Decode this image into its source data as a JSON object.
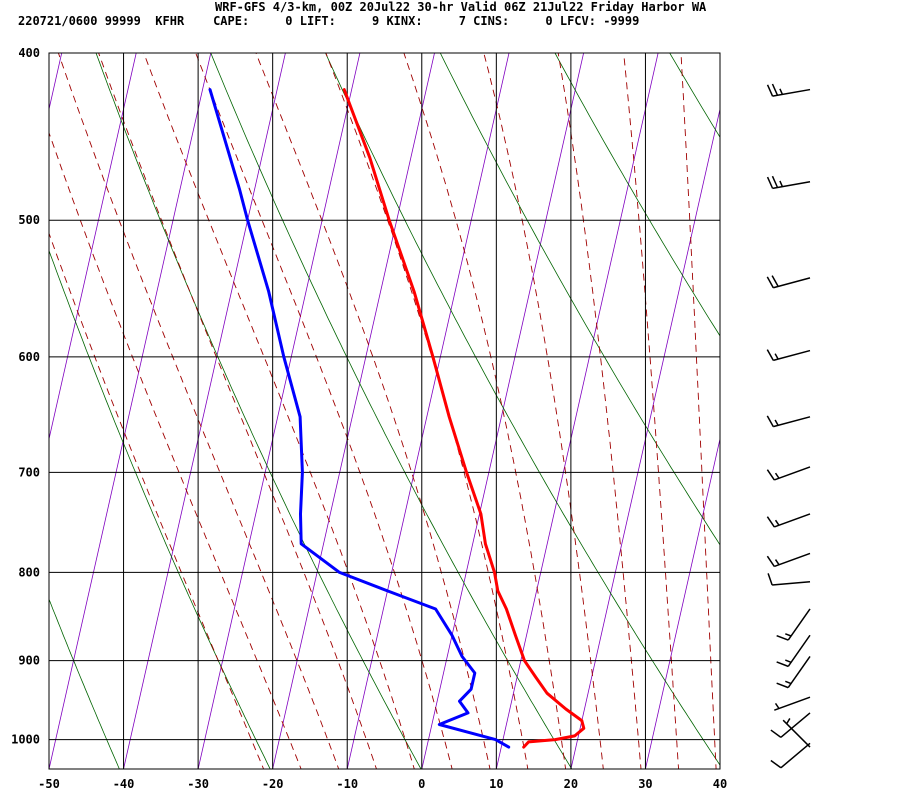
{
  "header": {
    "title": "WRF-GFS 4/3-km, 00Z 20Jul22 30-hr Valid 06Z 21Jul22 Friday Harbor WA",
    "stats": "220721/0600 99999  KFHR    CAPE:     0 LIFT:     9 KINX:     7 CINS:     0 LFCV: -9999"
  },
  "chart_data": {
    "type": "line",
    "subtype": "skew-T log-P sounding",
    "x_ticks": [
      "-50",
      "-40",
      "-30",
      "-20",
      "-10",
      "0",
      "10",
      "20",
      "30",
      "40"
    ],
    "x_tick_values": [
      -50,
      -40,
      -30,
      -20,
      -10,
      0,
      10,
      20,
      30,
      40
    ],
    "y_ticks": [
      "400",
      "500",
      "600",
      "700",
      "800",
      "900",
      "1000"
    ],
    "y_tick_values": [
      400,
      500,
      600,
      700,
      800,
      900,
      1000
    ],
    "xlim": [
      -50,
      40
    ],
    "ylim": [
      1040,
      400
    ],
    "y_scale": "log",
    "skew": "isotherms slant to the right with height",
    "grid": true,
    "colors": {
      "temperature": "#ff0000",
      "dewpoint": "#0000ff",
      "isotherms": "#8000c0",
      "dry_adiabats": "#006400",
      "moist_adiabats": "#a00000",
      "grid": "#000000"
    },
    "series": [
      {
        "id": "temperature",
        "color": "#ff0000",
        "points": [
          {
            "p": 1010,
            "t": 13.0
          },
          {
            "p": 1003,
            "t": 13.5
          },
          {
            "p": 1000,
            "t": 17.0
          },
          {
            "p": 995,
            "t": 19.5
          },
          {
            "p": 985,
            "t": 20.5
          },
          {
            "p": 975,
            "t": 20.0
          },
          {
            "p": 960,
            "t": 17.5
          },
          {
            "p": 940,
            "t": 14.5
          },
          {
            "p": 920,
            "t": 12.5
          },
          {
            "p": 900,
            "t": 10.5
          },
          {
            "p": 870,
            "t": 8.5
          },
          {
            "p": 840,
            "t": 6.5
          },
          {
            "p": 820,
            "t": 4.8
          },
          {
            "p": 800,
            "t": 3.8
          },
          {
            "p": 770,
            "t": 1.7
          },
          {
            "p": 740,
            "t": 0.2
          },
          {
            "p": 700,
            "t": -3.0
          },
          {
            "p": 650,
            "t": -7.0
          },
          {
            "p": 600,
            "t": -11.0
          },
          {
            "p": 550,
            "t": -15.5
          },
          {
            "p": 500,
            "t": -21.0
          },
          {
            "p": 460,
            "t": -25.5
          },
          {
            "p": 420,
            "t": -31.0
          }
        ]
      },
      {
        "id": "dewpoint",
        "color": "#0000ff",
        "points": [
          {
            "p": 1010,
            "t": 11.0
          },
          {
            "p": 1000,
            "t": 9.0
          },
          {
            "p": 990,
            "t": 5.0
          },
          {
            "p": 980,
            "t": 1.0
          },
          {
            "p": 965,
            "t": 4.5
          },
          {
            "p": 950,
            "t": 3.0
          },
          {
            "p": 935,
            "t": 4.2
          },
          {
            "p": 915,
            "t": 4.2
          },
          {
            "p": 895,
            "t": 2.0
          },
          {
            "p": 870,
            "t": 0.0
          },
          {
            "p": 840,
            "t": -3.0
          },
          {
            "p": 820,
            "t": -10.0
          },
          {
            "p": 800,
            "t": -17.0
          },
          {
            "p": 770,
            "t": -23.0
          },
          {
            "p": 740,
            "t": -24.0
          },
          {
            "p": 700,
            "t": -25.0
          },
          {
            "p": 650,
            "t": -27.0
          },
          {
            "p": 600,
            "t": -31.0
          },
          {
            "p": 550,
            "t": -35.0
          },
          {
            "p": 500,
            "t": -40.0
          },
          {
            "p": 480,
            "t": -42.0
          },
          {
            "p": 420,
            "t": -49.0
          }
        ]
      }
    ],
    "wind_barbs": [
      {
        "p": 420,
        "dir": 260,
        "kt": 25
      },
      {
        "p": 475,
        "dir": 260,
        "kt": 25
      },
      {
        "p": 540,
        "dir": 255,
        "kt": 20
      },
      {
        "p": 595,
        "dir": 255,
        "kt": 15
      },
      {
        "p": 650,
        "dir": 255,
        "kt": 15
      },
      {
        "p": 695,
        "dir": 250,
        "kt": 15
      },
      {
        "p": 740,
        "dir": 250,
        "kt": 15
      },
      {
        "p": 780,
        "dir": 250,
        "kt": 15
      },
      {
        "p": 810,
        "dir": 265,
        "kt": 10
      },
      {
        "p": 840,
        "dir": 215,
        "kt": 15
      },
      {
        "p": 870,
        "dir": 215,
        "kt": 15
      },
      {
        "p": 895,
        "dir": 215,
        "kt": 15
      },
      {
        "p": 945,
        "dir": 250,
        "kt": 5
      },
      {
        "p": 965,
        "dir": 230,
        "kt": 10
      },
      {
        "p": 1005,
        "dir": 230,
        "kt": 10
      },
      {
        "p": 1010,
        "dir": 315,
        "kt": 5
      }
    ]
  }
}
